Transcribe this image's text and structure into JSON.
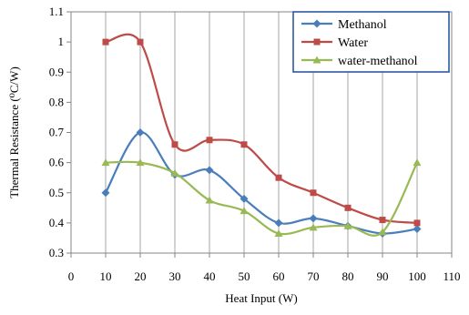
{
  "chart_data": {
    "type": "line",
    "xlabel": "Heat Input (W)",
    "ylabel": "Thermal Resistance (⁰C/W)",
    "xlim": [
      0,
      110
    ],
    "ylim": [
      0.3,
      1.1
    ],
    "x_ticks": [
      "0",
      "10",
      "20",
      "30",
      "40",
      "50",
      "60",
      "70",
      "80",
      "90",
      "100",
      "110"
    ],
    "y_ticks": [
      "0.3",
      "0.4",
      "0.5",
      "0.6",
      "0.7",
      "0.8",
      "0.9",
      "1",
      "1.1"
    ],
    "grid": "vertical",
    "legend_position": "top-right",
    "smooth": true,
    "series": [
      {
        "name": "Methanol",
        "color": "#4a7ebb",
        "marker": "diamond",
        "x": [
          10,
          20,
          30,
          40,
          50,
          60,
          70,
          80,
          90,
          100
        ],
        "y": [
          0.5,
          0.7,
          0.56,
          0.575,
          0.48,
          0.4,
          0.415,
          0.39,
          0.365,
          0.38
        ]
      },
      {
        "name": "Water",
        "color": "#be4b48",
        "marker": "square",
        "x": [
          10,
          20,
          30,
          40,
          50,
          60,
          70,
          80,
          90,
          100
        ],
        "y": [
          1.0,
          1.0,
          0.66,
          0.675,
          0.66,
          0.55,
          0.5,
          0.45,
          0.41,
          0.4
        ]
      },
      {
        "name": "water-methanol",
        "color": "#98b954",
        "marker": "triangle",
        "x": [
          10,
          20,
          30,
          40,
          50,
          60,
          70,
          80,
          90,
          100
        ],
        "y": [
          0.6,
          0.6,
          0.565,
          0.475,
          0.44,
          0.365,
          0.385,
          0.39,
          0.37,
          0.6
        ]
      }
    ]
  }
}
